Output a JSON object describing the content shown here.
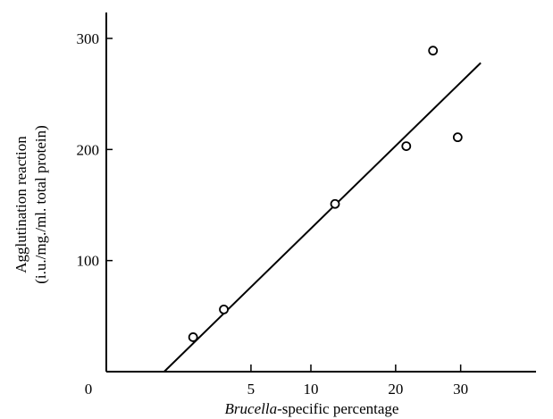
{
  "chart_data": {
    "type": "scatter",
    "title": "",
    "xlabel": {
      "italic_part": "Brucella",
      "rest": "-specific percentage"
    },
    "ylabel": {
      "line1": "Agglutination reaction",
      "line2": "(i.u./mg./ml. total protein)"
    },
    "x_scale": "sqrt",
    "x_origin_label": "0",
    "xlim": [
      0,
      42
    ],
    "ylim": [
      0,
      300
    ],
    "x_ticks": [
      {
        "value": 5,
        "label": "5"
      },
      {
        "value": 10,
        "label": "10"
      },
      {
        "value": 20,
        "label": "20"
      },
      {
        "value": 30,
        "label": "30"
      }
    ],
    "y_ticks": [
      {
        "value": 100,
        "label": "100"
      },
      {
        "value": 200,
        "label": "200"
      },
      {
        "value": 300,
        "label": "300"
      }
    ],
    "series": [
      {
        "marker": "open-circle",
        "x": [
          1.8,
          3.3,
          12.5,
          21.5,
          25.5,
          29.5
        ],
        "y": [
          31,
          56,
          151,
          203,
          289,
          211
        ]
      }
    ],
    "fit_line": {
      "x": [
        0.8,
        33.5
      ],
      "y": [
        0,
        278
      ]
    },
    "grid": false,
    "legend": "none"
  }
}
